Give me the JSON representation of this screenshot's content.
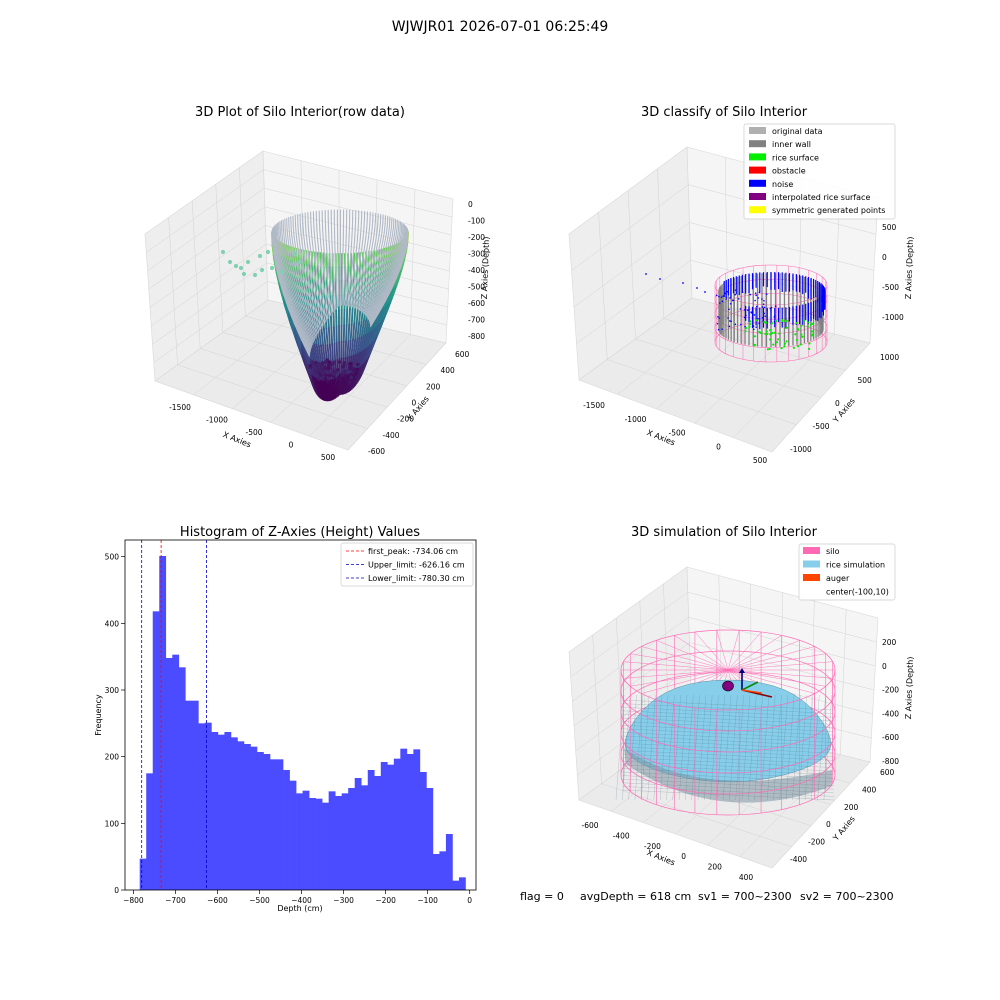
{
  "figure": {
    "title": "WJWJR01 2026-07-01 06:25:49",
    "footer": {
      "flag": "flag = 0",
      "avg_depth": "avgDepth = 618 cm",
      "sv1": "sv1 = 700~2300",
      "sv2": "sv2 = 700~2300"
    }
  },
  "colors": {
    "histogram_bar": "#4b4bff",
    "first_peak_line": "#ff0000",
    "limit_line": "#0000cc",
    "pane_gray": "#eeeeee",
    "silo": "#ff69b4",
    "rice_simulation": "#87ceeb",
    "auger": "#ff4500",
    "inner_wall": "#808080",
    "rice_surface": "#00ee00",
    "noise": "#0000ff",
    "center_marker": "#800080"
  },
  "chart_data": [
    {
      "type": "scatter",
      "subtype": "3d",
      "title": "3D Plot of Silo Interior(row data)",
      "xlabel": "X Axies",
      "ylabel": "Y Axies",
      "zlabel": "Z Axies (Depth)",
      "x_ticks": [
        "-1500",
        "-1000",
        "-500",
        "0",
        "500"
      ],
      "y_ticks": [
        "-600",
        "-400",
        "-200",
        "0",
        "200",
        "400",
        "600"
      ],
      "z_ticks": [
        "0",
        "-100",
        "-200",
        "-300",
        "-400",
        "-500",
        "-600",
        "-700",
        "-800"
      ],
      "colormap": "viridis",
      "grid": true
    },
    {
      "type": "scatter",
      "subtype": "3d",
      "title": "3D classify of Silo Interior",
      "xlabel": "X Axies",
      "ylabel": "Y Axies",
      "zlabel": "Z Axies (Depth)",
      "x_ticks": [
        "-1500",
        "-1000",
        "-500",
        "0",
        "500"
      ],
      "y_ticks": [
        "-1000",
        "-500",
        "0",
        "500",
        "1000"
      ],
      "z_ticks": [
        "500",
        "0",
        "-500",
        "-1000"
      ],
      "legend_position": "top-right",
      "legend": [
        {
          "label": "original data",
          "color": "#b0b0b0"
        },
        {
          "label": "inner wall",
          "color": "#808080"
        },
        {
          "label": "rice surface",
          "color": "#00ee00"
        },
        {
          "label": "obstacle",
          "color": "#ff0000"
        },
        {
          "label": "noise",
          "color": "#0000ff"
        },
        {
          "label": "interpolated rice surface",
          "color": "#800080"
        },
        {
          "label": "symmetric generated points",
          "color": "#ffff00"
        }
      ],
      "grid": true
    },
    {
      "type": "bar",
      "subtype": "histogram",
      "title": "Histogram of Z-Axies (Height) Values",
      "xlabel": "Depth (cm)",
      "ylabel": "Frequency",
      "xlim": [
        -820,
        15
      ],
      "ylim": [
        0,
        525
      ],
      "x_ticks": [
        -800,
        -700,
        -600,
        -500,
        -400,
        -300,
        -200,
        -100,
        0
      ],
      "y_ticks": [
        0,
        100,
        200,
        300,
        400,
        500
      ],
      "bin_start": -785,
      "bin_width": 15.5,
      "values": [
        47,
        175,
        418,
        501,
        348,
        353,
        334,
        284,
        284,
        250,
        251,
        237,
        233,
        237,
        229,
        223,
        219,
        215,
        207,
        204,
        196,
        196,
        180,
        164,
        145,
        149,
        138,
        137,
        131,
        148,
        141,
        145,
        153,
        168,
        157,
        180,
        171,
        192,
        188,
        197,
        212,
        204,
        211,
        177,
        153,
        54,
        58,
        84,
        14,
        19
      ],
      "legend_position": "top-right",
      "lines": [
        {
          "label": "first_peak: -734.06 cm",
          "x": -734.06,
          "color": "#ff0000"
        },
        {
          "label": "Upper_limit: -626.16 cm",
          "x": -626.16,
          "color": "#0000cc"
        },
        {
          "label": "Lower_limit: -780.30 cm",
          "x": -780.3,
          "color": "#0000cc"
        }
      ]
    },
    {
      "type": "area",
      "subtype": "3d-surface",
      "title": "3D simulation of Silo Interior",
      "xlabel": "X Axies",
      "ylabel": "Y Axies",
      "zlabel": "Z Axies (Depth)",
      "x_ticks": [
        "-600",
        "-400",
        "-200",
        "0",
        "200",
        "400"
      ],
      "y_ticks": [
        "-400",
        "-200",
        "0",
        "200",
        "400",
        "600"
      ],
      "z_ticks": [
        "200",
        "0",
        "-200",
        "-400",
        "-600",
        "-800"
      ],
      "legend_position": "top-right",
      "legend": [
        {
          "label": "silo",
          "color": "#ff69b4"
        },
        {
          "label": "rice simulation",
          "color": "#87ceeb"
        },
        {
          "label": "auger",
          "color": "#ff4500"
        },
        {
          "label": "center(-100,10)",
          "color": ""
        }
      ],
      "grid": true
    }
  ]
}
